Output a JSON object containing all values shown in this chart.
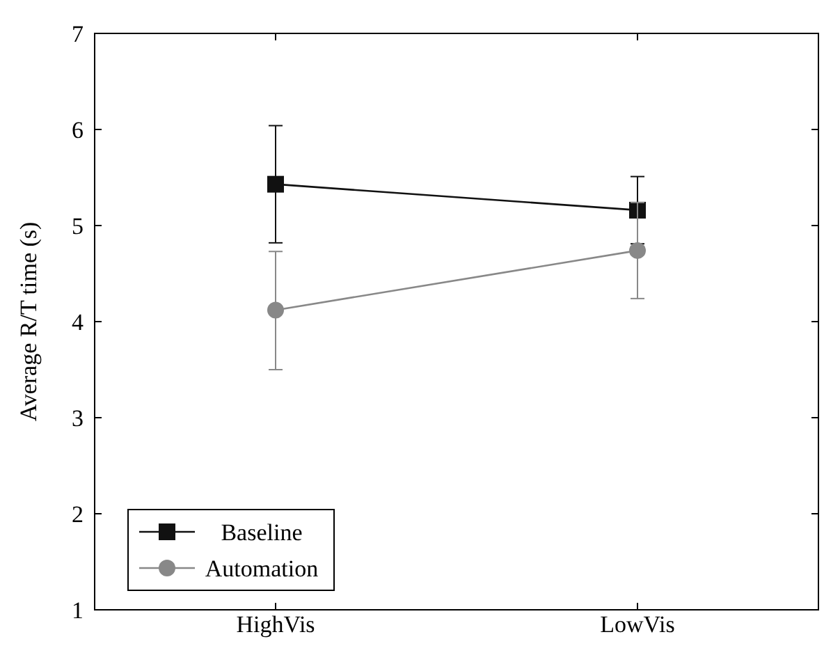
{
  "chart_data": {
    "type": "line",
    "ylabel": "Average R/T time (s)",
    "categories": [
      "HighVis",
      "LowVis"
    ],
    "series": [
      {
        "name": "Baseline",
        "color": "#111111",
        "values": [
          5.43,
          5.16
        ],
        "errors": [
          [
            4.82,
            6.04
          ],
          [
            4.81,
            5.51
          ]
        ],
        "marker": "square"
      },
      {
        "name": "Automation",
        "color": "#888888",
        "values": [
          4.12,
          4.74
        ],
        "errors": [
          [
            3.5,
            4.73
          ],
          [
            4.24,
            5.24
          ]
        ],
        "marker": "circle"
      }
    ],
    "ylim": [
      1,
      7
    ],
    "yticks": [
      1,
      2,
      3,
      4,
      5,
      6,
      7
    ],
    "legend": "bottom left",
    "grid": false
  }
}
